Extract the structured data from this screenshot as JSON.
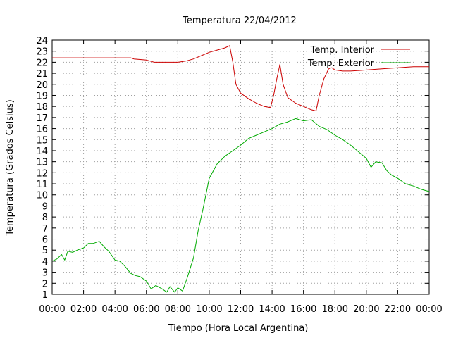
{
  "chart_data": {
    "type": "line",
    "title": "Temperatura 22/04/2012",
    "xlabel": "Tiempo (Hora Local Argentina)",
    "ylabel": "Temperatura (Grados Celsius)",
    "xlim": [
      0,
      24
    ],
    "ylim": [
      1,
      24
    ],
    "grid": true,
    "legend_position": "top-right",
    "x_tick_labels": [
      "00:00",
      "02:00",
      "04:00",
      "06:00",
      "08:00",
      "10:00",
      "12:00",
      "14:00",
      "16:00",
      "18:00",
      "20:00",
      "22:00",
      "00:00"
    ],
    "y_ticks": [
      1,
      2,
      3,
      4,
      5,
      6,
      7,
      8,
      9,
      10,
      11,
      12,
      13,
      14,
      15,
      16,
      17,
      18,
      19,
      20,
      21,
      22,
      23,
      24
    ],
    "series": [
      {
        "name": "Temp. Interior",
        "color": "#cc0000",
        "points": [
          [
            0,
            22.4
          ],
          [
            1,
            22.4
          ],
          [
            2,
            22.4
          ],
          [
            3,
            22.4
          ],
          [
            4,
            22.4
          ],
          [
            5,
            22.4
          ],
          [
            5.2,
            22.3
          ],
          [
            6,
            22.2
          ],
          [
            6.5,
            22.0
          ],
          [
            7,
            22.0
          ],
          [
            8,
            22.0
          ],
          [
            8.5,
            22.1
          ],
          [
            9,
            22.3
          ],
          [
            9.5,
            22.6
          ],
          [
            10,
            22.9
          ],
          [
            10.5,
            23.1
          ],
          [
            11,
            23.3
          ],
          [
            11.3,
            23.5
          ],
          [
            11.5,
            22.0
          ],
          [
            11.7,
            20.0
          ],
          [
            12,
            19.2
          ],
          [
            12.5,
            18.7
          ],
          [
            13,
            18.3
          ],
          [
            13.5,
            18.0
          ],
          [
            13.9,
            17.9
          ],
          [
            14.1,
            19.0
          ],
          [
            14.3,
            20.5
          ],
          [
            14.5,
            21.8
          ],
          [
            14.7,
            20.0
          ],
          [
            15,
            18.8
          ],
          [
            15.5,
            18.3
          ],
          [
            16,
            18.0
          ],
          [
            16.5,
            17.7
          ],
          [
            16.8,
            17.6
          ],
          [
            17,
            19.0
          ],
          [
            17.3,
            20.5
          ],
          [
            17.6,
            21.4
          ],
          [
            17.8,
            21.5
          ],
          [
            18,
            21.3
          ],
          [
            18.5,
            21.2
          ],
          [
            19,
            21.2
          ],
          [
            20,
            21.3
          ],
          [
            21,
            21.4
          ],
          [
            22,
            21.5
          ],
          [
            23,
            21.6
          ],
          [
            24,
            21.6
          ]
        ]
      },
      {
        "name": "Temp. Exterior",
        "color": "#00aa00",
        "points": [
          [
            0,
            4.0
          ],
          [
            0.3,
            4.2
          ],
          [
            0.6,
            4.6
          ],
          [
            0.8,
            4.1
          ],
          [
            1,
            4.9
          ],
          [
            1.3,
            4.8
          ],
          [
            1.6,
            5.0
          ],
          [
            2,
            5.2
          ],
          [
            2.3,
            5.6
          ],
          [
            2.6,
            5.6
          ],
          [
            3,
            5.8
          ],
          [
            3.3,
            5.3
          ],
          [
            3.6,
            4.9
          ],
          [
            4,
            4.1
          ],
          [
            4.3,
            4.0
          ],
          [
            4.6,
            3.6
          ],
          [
            5,
            2.9
          ],
          [
            5.3,
            2.7
          ],
          [
            5.6,
            2.6
          ],
          [
            6,
            2.2
          ],
          [
            6.3,
            1.5
          ],
          [
            6.6,
            1.8
          ],
          [
            7,
            1.5
          ],
          [
            7.3,
            1.2
          ],
          [
            7.5,
            1.7
          ],
          [
            7.8,
            1.2
          ],
          [
            8,
            1.6
          ],
          [
            8.3,
            1.3
          ],
          [
            8.6,
            2.5
          ],
          [
            9,
            4.3
          ],
          [
            9.3,
            6.8
          ],
          [
            9.6,
            8.7
          ],
          [
            10,
            11.5
          ],
          [
            10.5,
            12.8
          ],
          [
            11,
            13.5
          ],
          [
            11.5,
            14.0
          ],
          [
            12,
            14.5
          ],
          [
            12.5,
            15.1
          ],
          [
            13,
            15.4
          ],
          [
            13.5,
            15.7
          ],
          [
            14,
            16.0
          ],
          [
            14.5,
            16.4
          ],
          [
            15,
            16.6
          ],
          [
            15.5,
            16.9
          ],
          [
            16,
            16.7
          ],
          [
            16.5,
            16.8
          ],
          [
            17,
            16.2
          ],
          [
            17.5,
            15.9
          ],
          [
            18,
            15.4
          ],
          [
            18.5,
            15.0
          ],
          [
            19,
            14.5
          ],
          [
            19.5,
            13.9
          ],
          [
            20,
            13.3
          ],
          [
            20.3,
            12.5
          ],
          [
            20.6,
            13.0
          ],
          [
            21,
            12.9
          ],
          [
            21.3,
            12.2
          ],
          [
            21.6,
            11.8
          ],
          [
            22,
            11.5
          ],
          [
            22.5,
            11.0
          ],
          [
            23,
            10.8
          ],
          [
            23.5,
            10.5
          ],
          [
            24,
            10.3
          ]
        ]
      }
    ]
  }
}
